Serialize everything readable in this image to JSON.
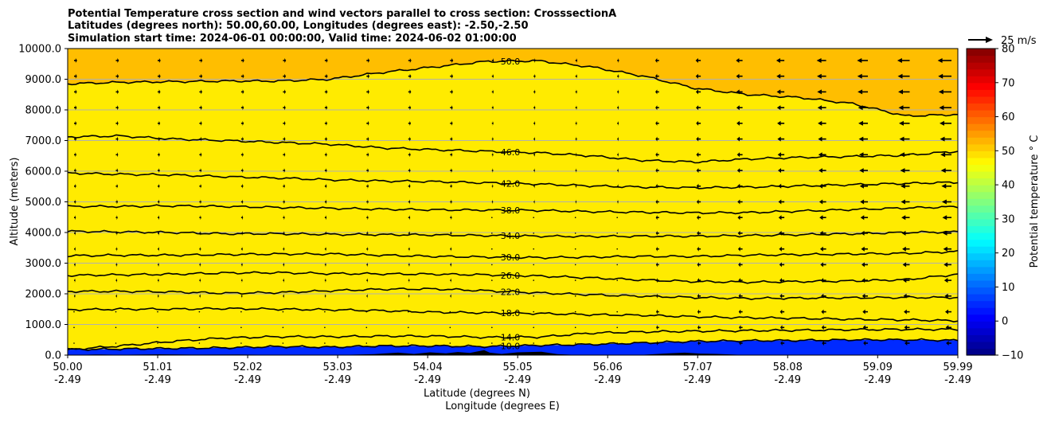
{
  "chart_data": {
    "type": "heatmap",
    "title_lines": [
      "Potential Temperature cross section and wind vectors parallel to cross section: CrosssectionA",
      "Latitudes (degrees north): 50.00,60.00, Longitudes (degrees east): -2.50,-2.50",
      "Simulation start time: 2024-06-01 00:00:00, Valid time: 2024-06-02 01:00:00"
    ],
    "ylabel": "Altitude (meters)",
    "xlabel_lines": [
      "Latitude (degrees N)",
      "Longitude (degrees E)"
    ],
    "ylim": [
      0,
      10000
    ],
    "yticks": [
      "0.0",
      "1000.0",
      "2000.0",
      "3000.0",
      "4000.0",
      "5000.0",
      "6000.0",
      "7000.0",
      "8000.0",
      "9000.0",
      "10000.0"
    ],
    "xlim": [
      50.0,
      59.99
    ],
    "xticks": [
      {
        "lat": "50.00",
        "lon": "-2.49"
      },
      {
        "lat": "51.01",
        "lon": "-2.49"
      },
      {
        "lat": "52.02",
        "lon": "-2.49"
      },
      {
        "lat": "53.03",
        "lon": "-2.49"
      },
      {
        "lat": "54.04",
        "lon": "-2.49"
      },
      {
        "lat": "55.05",
        "lon": "-2.49"
      },
      {
        "lat": "56.06",
        "lon": "-2.49"
      },
      {
        "lat": "57.07",
        "lon": "-2.49"
      },
      {
        "lat": "58.08",
        "lon": "-2.49"
      },
      {
        "lat": "59.09",
        "lon": "-2.49"
      },
      {
        "lat": "59.99",
        "lon": "-2.49"
      }
    ],
    "grid": "horizontal",
    "colorbar": {
      "label": "Potential temperature $^\\circ$C",
      "label_text": "Potential temperature ° C",
      "range": [
        -10,
        80
      ],
      "ticks": [
        "−10",
        "0",
        "10",
        "20",
        "30",
        "40",
        "50",
        "60",
        "70",
        "80"
      ],
      "colormap": "jet"
    },
    "quiver_key": {
      "label": "25 m/s",
      "speed_ms": 25
    },
    "contours": [
      {
        "level": 10.0,
        "label": "10.0",
        "alt_m": [
          180,
          200,
          220,
          240,
          280,
          260,
          300,
          300,
          280,
          320,
          350,
          400,
          450,
          470,
          480,
          500,
          500,
          480
        ]
      },
      {
        "level": 14.0,
        "label": "14.0",
        "alt_m": [
          180,
          300,
          450,
          560,
          600,
          600,
          620,
          620,
          580,
          590,
          720,
          760,
          780,
          800,
          810,
          830,
          840,
          840
        ]
      },
      {
        "level": 18.0,
        "label": "18.0",
        "alt_m": [
          1480,
          1500,
          1500,
          1520,
          1500,
          1480,
          1450,
          1400,
          1380,
          1360,
          1320,
          1300,
          1250,
          1220,
          1200,
          1170,
          1150,
          1120
        ]
      },
      {
        "level": 22.0,
        "label": "22.0",
        "alt_m": [
          2080,
          2080,
          2060,
          2020,
          2040,
          2100,
          2150,
          2160,
          2100,
          2030,
          1970,
          1920,
          1880,
          1850,
          1860,
          1870,
          1880,
          1880
        ]
      },
      {
        "level": 26.0,
        "label": "26.0",
        "alt_m": [
          2600,
          2620,
          2640,
          2680,
          2690,
          2660,
          2650,
          2640,
          2620,
          2580,
          2520,
          2450,
          2400,
          2380,
          2400,
          2420,
          2460,
          2640
        ]
      },
      {
        "level": 30.0,
        "label": "30.0",
        "alt_m": [
          3240,
          3260,
          3260,
          3280,
          3300,
          3300,
          3260,
          3220,
          3200,
          3180,
          3200,
          3220,
          3220,
          3260,
          3280,
          3300,
          3320,
          3380
        ]
      },
      {
        "level": 34.0,
        "label": "34.0",
        "alt_m": [
          4040,
          4020,
          4000,
          3960,
          3960,
          3940,
          3930,
          3920,
          3900,
          3880,
          3870,
          3880,
          3880,
          3900,
          3930,
          3960,
          4000,
          4020
        ]
      },
      {
        "level": 38.0,
        "label": "38.0",
        "alt_m": [
          4850,
          4850,
          4870,
          4850,
          4820,
          4790,
          4760,
          4740,
          4730,
          4720,
          4680,
          4660,
          4640,
          4650,
          4700,
          4750,
          4800,
          4840
        ]
      },
      {
        "level": 42.0,
        "label": "42.0",
        "alt_m": [
          5940,
          5900,
          5880,
          5820,
          5780,
          5720,
          5680,
          5660,
          5620,
          5580,
          5520,
          5480,
          5460,
          5480,
          5520,
          5560,
          5600,
          5640
        ]
      },
      {
        "level": 46.0,
        "label": "46.0",
        "alt_m": [
          7120,
          7150,
          7050,
          7000,
          6940,
          6880,
          6760,
          6700,
          6650,
          6600,
          6500,
          6350,
          6300,
          6400,
          6450,
          6480,
          6520,
          6650
        ]
      },
      {
        "level": 50.0,
        "label": "50.0",
        "alt_m": [
          8850,
          8900,
          8920,
          8940,
          8940,
          9000,
          9220,
          9400,
          9580,
          9600,
          9400,
          9100,
          8700,
          8500,
          8400,
          8200,
          7800,
          7850
        ]
      }
    ],
    "terrain_note_m": {
      "max": 600
    }
  }
}
